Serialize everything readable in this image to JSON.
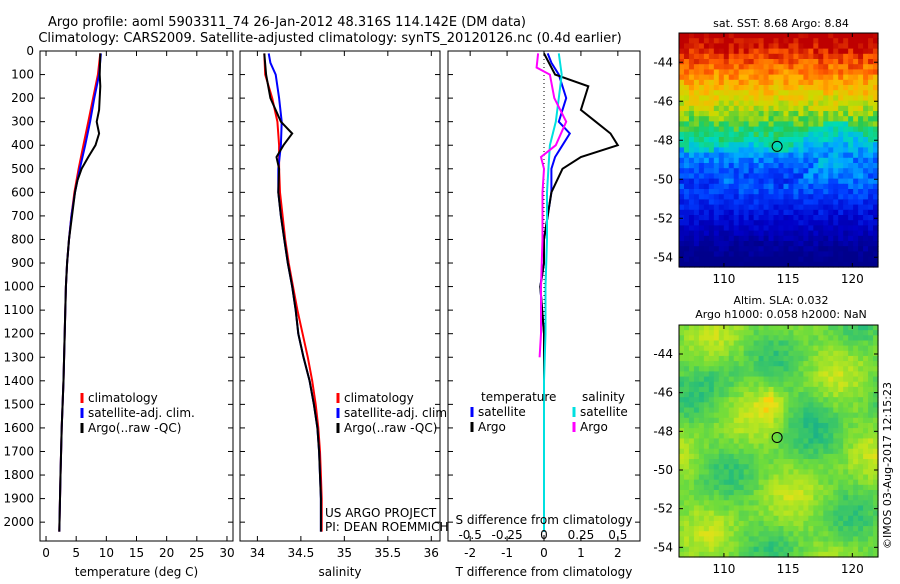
{
  "header": {
    "title": "Argo profile: aoml 5903311_74 26-Jan-2012 48.316S 114.142E (DM data)",
    "subtitle": "Climatology: CARS2009. Satellite-adjusted climatology: synTS_20120126.nc (0.4d earlier)"
  },
  "side_note": "©IMOS 03-Aug-2017 12:15:23",
  "colors": {
    "climatology": "#ff0000",
    "satellite": "#0000ff",
    "argo": "#000000",
    "salinity_satellite": "#00e0e0",
    "salinity_argo": "#ff00ff"
  },
  "chart_data": [
    {
      "type": "line",
      "xlabel": "temperature (deg C)",
      "xlim": [
        -1,
        31
      ],
      "ylim": [
        2080,
        0
      ],
      "xticks": [
        "0",
        "5",
        "10",
        "15",
        "20",
        "25",
        "30"
      ],
      "yticks": [
        "0",
        "100",
        "200",
        "300",
        "400",
        "500",
        "600",
        "700",
        "800",
        "900",
        "1000",
        "1100",
        "1200",
        "1300",
        "1400",
        "1500",
        "1600",
        "1700",
        "1800",
        "1900",
        "2000"
      ],
      "legend": [
        "climatology",
        "satellite-adj. clim.",
        "Argo(..raw -QC)"
      ],
      "series": [
        {
          "name": "climatology",
          "color": "#ff0000",
          "points": [
            [
              9.0,
              10
            ],
            [
              8.6,
              100
            ],
            [
              7.8,
              200
            ],
            [
              7.0,
              300
            ],
            [
              6.2,
              400
            ],
            [
              5.4,
              500
            ],
            [
              4.7,
              600
            ],
            [
              4.2,
              700
            ],
            [
              3.8,
              800
            ],
            [
              3.5,
              900
            ],
            [
              3.3,
              1000
            ],
            [
              3.1,
              1200
            ],
            [
              2.9,
              1400
            ],
            [
              2.6,
              1600
            ],
            [
              2.4,
              1800
            ],
            [
              2.2,
              2040
            ]
          ]
        },
        {
          "name": "satellite-adj. clim.",
          "color": "#0000ff",
          "points": [
            [
              9.1,
              10
            ],
            [
              8.8,
              100
            ],
            [
              8.0,
              200
            ],
            [
              7.3,
              300
            ],
            [
              6.5,
              400
            ],
            [
              5.6,
              500
            ],
            [
              4.8,
              600
            ],
            [
              4.2,
              700
            ],
            [
              3.8,
              800
            ],
            [
              3.5,
              900
            ],
            [
              3.3,
              1000
            ],
            [
              3.1,
              1200
            ],
            [
              2.9,
              1400
            ],
            [
              2.6,
              1600
            ],
            [
              2.4,
              1800
            ],
            [
              2.2,
              2040
            ]
          ]
        },
        {
          "name": "Argo(..raw -QC)",
          "color": "#000000",
          "points": [
            [
              9.0,
              10
            ],
            [
              8.9,
              100
            ],
            [
              9.0,
              150
            ],
            [
              8.8,
              250
            ],
            [
              8.4,
              300
            ],
            [
              8.8,
              350
            ],
            [
              8.2,
              400
            ],
            [
              7.0,
              450
            ],
            [
              5.9,
              500
            ],
            [
              5.2,
              550
            ],
            [
              4.8,
              600
            ],
            [
              4.3,
              700
            ],
            [
              3.8,
              800
            ],
            [
              3.5,
              900
            ],
            [
              3.3,
              1000
            ],
            [
              3.1,
              1200
            ],
            [
              2.9,
              1400
            ],
            [
              2.6,
              1600
            ],
            [
              2.4,
              1800
            ],
            [
              2.2,
              2040
            ]
          ]
        }
      ]
    },
    {
      "type": "line",
      "xlabel": "salinity",
      "xlim": [
        33.8,
        36.1
      ],
      "ylim": [
        2080,
        0
      ],
      "xticks": [
        "34",
        "34.5",
        "35",
        "35.5",
        "36"
      ],
      "legend": [
        "climatology",
        "satellite-adj. clim.",
        "Argo(..raw -QC)"
      ],
      "annotations": [
        "US ARGO PROJECT",
        "PI: DEAN ROEMMICH"
      ],
      "series": [
        {
          "name": "climatology",
          "color": "#ff0000",
          "points": [
            [
              34.08,
              10
            ],
            [
              34.09,
              100
            ],
            [
              34.17,
              200
            ],
            [
              34.23,
              300
            ],
            [
              34.25,
              400
            ],
            [
              34.25,
              500
            ],
            [
              34.26,
              600
            ],
            [
              34.29,
              700
            ],
            [
              34.32,
              800
            ],
            [
              34.36,
              900
            ],
            [
              34.41,
              1000
            ],
            [
              34.46,
              1100
            ],
            [
              34.52,
              1200
            ],
            [
              34.58,
              1300
            ],
            [
              34.63,
              1400
            ],
            [
              34.67,
              1500
            ],
            [
              34.7,
              1600
            ],
            [
              34.72,
              1700
            ],
            [
              34.73,
              1800
            ],
            [
              34.74,
              1900
            ],
            [
              34.74,
              2040
            ]
          ]
        },
        {
          "name": "satellite-adj. clim.",
          "color": "#0000ff",
          "points": [
            [
              34.13,
              10
            ],
            [
              34.15,
              50
            ],
            [
              34.21,
              100
            ],
            [
              34.25,
              200
            ],
            [
              34.28,
              300
            ],
            [
              34.27,
              400
            ],
            [
              34.24,
              500
            ],
            [
              34.24,
              600
            ],
            [
              34.27,
              700
            ],
            [
              34.31,
              800
            ],
            [
              34.35,
              900
            ],
            [
              34.4,
              1000
            ],
            [
              34.44,
              1100
            ],
            [
              34.47,
              1200
            ],
            [
              34.53,
              1300
            ],
            [
              34.6,
              1400
            ],
            [
              34.65,
              1500
            ],
            [
              34.69,
              1600
            ],
            [
              34.71,
              1700
            ],
            [
              34.72,
              1800
            ],
            [
              34.73,
              1900
            ],
            [
              34.73,
              2040
            ]
          ]
        },
        {
          "name": "Argo(..raw -QC)",
          "color": "#000000",
          "points": [
            [
              34.08,
              10
            ],
            [
              34.1,
              100
            ],
            [
              34.15,
              200
            ],
            [
              34.27,
              300
            ],
            [
              34.4,
              350
            ],
            [
              34.3,
              400
            ],
            [
              34.22,
              450
            ],
            [
              34.25,
              500
            ],
            [
              34.24,
              600
            ],
            [
              34.27,
              700
            ],
            [
              34.31,
              800
            ],
            [
              34.35,
              900
            ],
            [
              34.4,
              1000
            ],
            [
              34.44,
              1100
            ],
            [
              34.47,
              1200
            ],
            [
              34.53,
              1300
            ],
            [
              34.6,
              1400
            ],
            [
              34.65,
              1500
            ],
            [
              34.69,
              1600
            ],
            [
              34.71,
              1700
            ],
            [
              34.72,
              1800
            ],
            [
              34.73,
              1900
            ],
            [
              34.73,
              2040
            ]
          ]
        }
      ]
    },
    {
      "type": "line",
      "xlabel": "T difference from climatology",
      "xlim": [
        -2.6,
        2.6
      ],
      "ylim": [
        2080,
        0
      ],
      "xticks": [
        "-2",
        "-1",
        "0",
        "1",
        "2"
      ],
      "xlabel2": "S difference from climatology",
      "xticks2": [
        "-0.5",
        "-0.25",
        "0",
        "0.25",
        "0.5"
      ],
      "legend_temperature": {
        "heading": "temperature",
        "items": [
          "satellite",
          "Argo"
        ]
      },
      "legend_salinity": {
        "heading": "salinity",
        "items": [
          "satellite",
          "Argo"
        ]
      },
      "series": [
        {
          "name": "temperature satellite",
          "color": "#0000ff",
          "points": [
            [
              0.1,
              10
            ],
            [
              0.2,
              50
            ],
            [
              0.4,
              100
            ],
            [
              0.6,
              200
            ],
            [
              0.4,
              300
            ],
            [
              0.7,
              350
            ],
            [
              0.5,
              400
            ],
            [
              0.3,
              450
            ],
            [
              0.2,
              500
            ],
            [
              0.2,
              600
            ],
            [
              0.1,
              700
            ],
            [
              0.0,
              800
            ],
            [
              0.0,
              900
            ],
            [
              -0.1,
              1000
            ],
            [
              0.0,
              1200
            ],
            [
              0.0,
              1400
            ],
            [
              0.0,
              1600
            ],
            [
              0.0,
              1800
            ],
            [
              0.0,
              2040
            ]
          ]
        },
        {
          "name": "temperature Argo",
          "color": "#000000",
          "points": [
            [
              0.0,
              10
            ],
            [
              0.3,
              100
            ],
            [
              1.2,
              150
            ],
            [
              1.0,
              250
            ],
            [
              1.4,
              300
            ],
            [
              1.8,
              350
            ],
            [
              2.0,
              400
            ],
            [
              1.0,
              450
            ],
            [
              0.5,
              500
            ],
            [
              0.2,
              600
            ],
            [
              0.1,
              700
            ],
            [
              0.0,
              800
            ],
            [
              0.0,
              900
            ],
            [
              -0.1,
              1000
            ],
            [
              0.0,
              1200
            ],
            [
              0.0,
              1400
            ],
            [
              0.0,
              1600
            ],
            [
              0.0,
              1800
            ],
            [
              0.0,
              2040
            ]
          ]
        },
        {
          "name": "salinity satellite",
          "color": "#00e0e0",
          "points": [
            [
              0.1,
              10
            ],
            [
              0.12,
              100
            ],
            [
              0.1,
              200
            ],
            [
              0.08,
              300
            ],
            [
              0.04,
              400
            ],
            [
              0.03,
              500
            ],
            [
              0.02,
              600
            ],
            [
              0.02,
              800
            ],
            [
              0.01,
              1000
            ],
            [
              0.01,
              1200
            ],
            [
              0.0,
              1400
            ],
            [
              0.0,
              1600
            ],
            [
              0.0,
              1800
            ],
            [
              0.0,
              2040
            ]
          ]
        },
        {
          "name": "salinity Argo",
          "color": "#ff00ff",
          "points": [
            [
              -0.04,
              10
            ],
            [
              -0.05,
              70
            ],
            [
              0.04,
              100
            ],
            [
              0.07,
              200
            ],
            [
              0.15,
              300
            ],
            [
              0.08,
              400
            ],
            [
              -0.02,
              450
            ],
            [
              0.0,
              500
            ],
            [
              -0.01,
              600
            ],
            [
              -0.01,
              800
            ],
            [
              -0.02,
              1000
            ],
            [
              -0.02,
              1200
            ],
            [
              -0.03,
              1300
            ]
          ]
        }
      ]
    },
    {
      "type": "heatmap",
      "title": "sat. SST: 8.68 Argo: 8.84",
      "xlim": [
        106.5,
        122
      ],
      "ylim": [
        -54.5,
        -42.5
      ],
      "xticks": [
        "110",
        "115",
        "120"
      ],
      "yticks": [
        "-44",
        "-46",
        "-48",
        "-50",
        "-52",
        "-54"
      ],
      "marker": [
        114.142,
        -48.316
      ]
    },
    {
      "type": "heatmap",
      "title": "Altim. SLA: 0.032",
      "subtitle": "Argo h1000: 0.058 h2000: NaN",
      "xlim": [
        106.5,
        122
      ],
      "ylim": [
        -54.5,
        -42.5
      ],
      "xticks": [
        "110",
        "115",
        "120"
      ],
      "yticks": [
        "-44",
        "-46",
        "-48",
        "-50",
        "-52",
        "-54"
      ],
      "marker": [
        114.142,
        -48.316
      ]
    }
  ]
}
